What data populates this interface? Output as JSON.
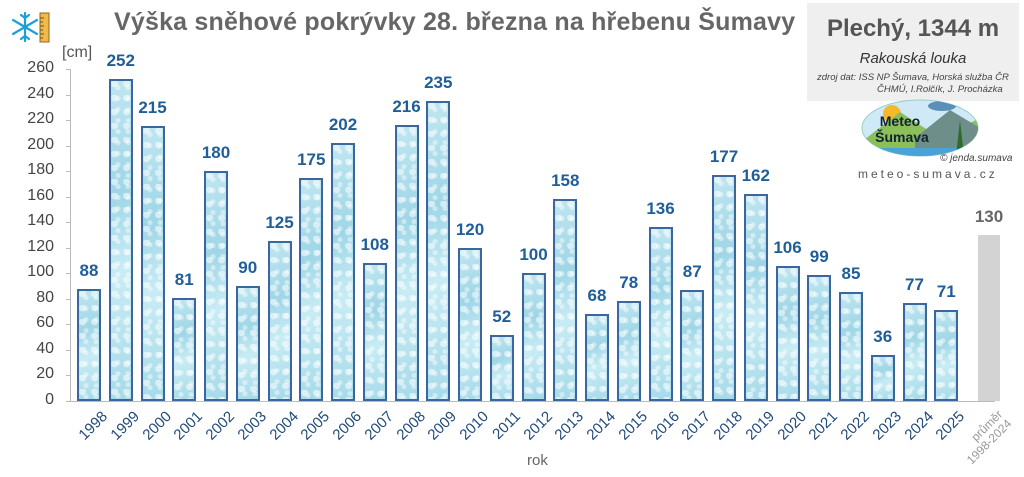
{
  "header": {
    "title": "Výška sněhové pokrývky 28. března na hřebenu Šumavy",
    "icon": "snowflake-ruler-icon"
  },
  "infobox": {
    "station": "Plechý, 1344 m",
    "location": "Rakouská louka",
    "source_line1": "zdroj dat:  ISS NP Šumava, Horská služba ČR",
    "source_line2": "ČHMÚ, I.Rolčík, J. Procházka",
    "logo_text_1": "Meteo",
    "logo_text_2": "Šumava",
    "copyright": "© jenda.sumava",
    "website": "meteo-sumava.cz"
  },
  "axis": {
    "unit": "[cm]",
    "xtitle": "rok",
    "yticks": [
      "0",
      "20",
      "40",
      "60",
      "80",
      "100",
      "120",
      "140",
      "160",
      "180",
      "200",
      "220",
      "240",
      "260"
    ]
  },
  "colors": {
    "bar_border": "#3c679e",
    "bar_fill": "#a6dae8",
    "label": "#1f5e98",
    "avg_bar": "#d3d3d3",
    "title": "#666666"
  },
  "chart_data": {
    "type": "bar",
    "title": "Výška sněhové pokrývky 28. března na hřebenu Šumavy",
    "subtitle": "Plechý, 1344 m — Rakouská louka",
    "xlabel": "rok",
    "ylabel": "[cm]",
    "ylim": [
      0,
      260
    ],
    "ytick_step": 20,
    "grid": false,
    "legend": "none",
    "categories": [
      "1998",
      "1999",
      "2000",
      "2001",
      "2002",
      "2003",
      "2004",
      "2005",
      "2006",
      "2007",
      "2008",
      "2009",
      "2010",
      "2011",
      "2012",
      "2013",
      "2014",
      "2015",
      "2016",
      "2017",
      "2018",
      "2019",
      "2020",
      "2021",
      "2022",
      "2023",
      "2024",
      "2025",
      "průměr 1998-2024"
    ],
    "values": [
      88,
      252,
      215,
      81,
      180,
      90,
      125,
      175,
      202,
      108,
      216,
      235,
      120,
      52,
      100,
      158,
      68,
      78,
      136,
      87,
      177,
      162,
      106,
      99,
      85,
      36,
      77,
      71,
      130
    ],
    "annotations": [
      "průměr 1998-2024 = 130 (gray bar)"
    ]
  }
}
